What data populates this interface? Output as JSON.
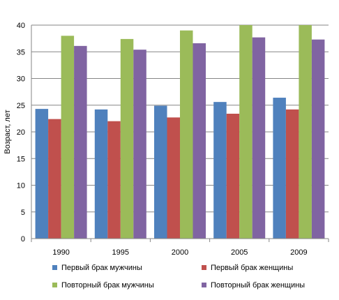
{
  "chart_data": {
    "type": "bar",
    "title": "",
    "xlabel": "",
    "ylabel": "Возраст, лет",
    "categories": [
      "1990",
      "1995",
      "2000",
      "2005",
      "2009"
    ],
    "ylim": [
      0,
      40
    ],
    "yticks": [
      0,
      5,
      10,
      15,
      20,
      25,
      30,
      35,
      40
    ],
    "grid": true,
    "legend_position": "bottom",
    "series": [
      {
        "name": "Первый брак мужчины",
        "color": "#4F81BD",
        "values": [
          24.3,
          24.2,
          24.9,
          25.6,
          26.4
        ]
      },
      {
        "name": "Первый брак женщины",
        "color": "#C0504D",
        "values": [
          22.4,
          22.0,
          22.7,
          23.4,
          24.2
        ]
      },
      {
        "name": "Повторный брак мужчины",
        "color": "#9BBB59",
        "values": [
          38.0,
          37.4,
          39.0,
          40.0,
          40.0
        ]
      },
      {
        "name": "Повторный брак женщины",
        "color": "#8064A2",
        "values": [
          36.1,
          35.4,
          36.6,
          37.7,
          37.3
        ]
      }
    ]
  }
}
